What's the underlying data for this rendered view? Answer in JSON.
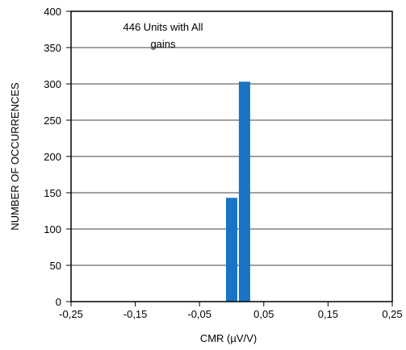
{
  "chart_data": {
    "type": "bar",
    "xlabel": "CMR (µV/V)",
    "ylabel": "NUMBER OF OCCURRENCES",
    "annotation": [
      "446 Units with All",
      "gains"
    ],
    "x_ticks": [
      -0.25,
      -0.15,
      -0.05,
      0.05,
      0.15,
      0.25
    ],
    "x_tick_labels": [
      "-0,25",
      "-0,15",
      "-0,05",
      "0,05",
      "0,15",
      "0,25"
    ],
    "y_ticks": [
      0,
      50,
      100,
      150,
      200,
      250,
      300,
      350,
      400
    ],
    "y_tick_labels": [
      "0",
      "50",
      "100",
      "150",
      "200",
      "250",
      "300",
      "350",
      "400"
    ],
    "xlim": [
      -0.25,
      0.25
    ],
    "ylim": [
      0,
      400
    ],
    "grid": "horizontal",
    "bars": [
      {
        "x": 0.0,
        "value": 143
      },
      {
        "x": 0.02,
        "value": 303
      }
    ],
    "bar_color": "#1a74c4"
  }
}
